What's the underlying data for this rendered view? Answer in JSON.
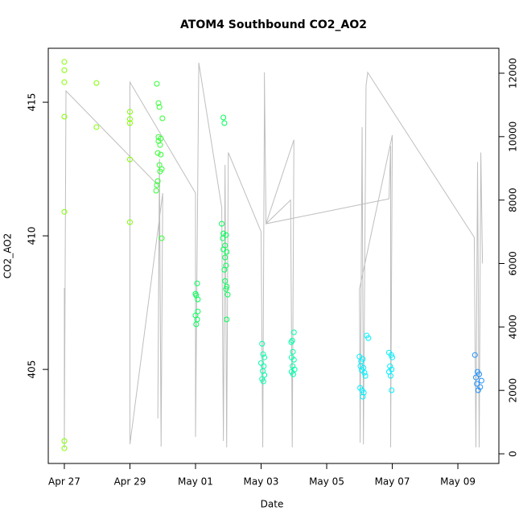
{
  "chart_data": {
    "type": "scatter",
    "title": "ATOM4 Southbound CO2_AO2",
    "x_label": "Date",
    "y_label": "CO2_AO2",
    "xlim": [
      26.51,
      40.25
    ],
    "xticks": [
      {
        "value": 27,
        "label": "Apr 27"
      },
      {
        "value": 29,
        "label": "Apr 29"
      },
      {
        "value": 31,
        "label": "May 01"
      },
      {
        "value": 33,
        "label": "May 03"
      },
      {
        "value": 35,
        "label": "May 05"
      },
      {
        "value": 37,
        "label": "May 07"
      },
      {
        "value": 39,
        "label": "May 09"
      }
    ],
    "ylim": [
      401.48,
      417.02
    ],
    "yticks": [
      405,
      410,
      415
    ],
    "y2lim": [
      -304,
      12786
    ],
    "y2ticks": [
      0,
      2000,
      4000,
      6000,
      8000,
      10000,
      12000
    ],
    "series": [
      {
        "type": "line",
        "axis": "y2",
        "color": "#bebebe",
        "x": [
          27.0,
          27.0,
          27.05,
          29.9,
          29.85,
          29.9,
          29.95,
          30.0,
          29.0,
          29.0,
          31.0,
          31.0,
          31.1,
          31.8,
          31.85,
          31.9,
          31.95,
          32.0,
          33.0,
          33.05,
          33.1,
          33.1,
          33.15,
          33.9,
          33.95,
          34.0,
          33.15,
          36.9,
          36.95,
          36.95,
          37.0,
          36.0,
          36.02,
          36.08,
          36.12,
          36.2,
          36.25,
          39.5,
          39.55,
          39.6,
          39.65,
          39.7,
          39.75
        ],
        "values": [
          5226,
          178,
          11441,
          8422,
          1116,
          9300,
          228,
          8219,
          304,
          11720,
          8219,
          533,
          12329,
          7763,
          406,
          9107,
          203,
          9500,
          7000,
          203,
          11000,
          12024,
          7255,
          8000,
          203,
          9900,
          7255,
          8040,
          9700,
          203,
          10046,
          5200,
          350,
          10300,
          300,
          11600,
          12024,
          6824,
          203,
          9200,
          203,
          9500,
          6000
        ]
      },
      {
        "type": "points",
        "color": "#80ff00",
        "x": [
          27,
          27,
          27,
          27,
          27,
          27,
          27,
          27.98,
          27.98,
          29,
          29,
          29,
          29,
          29
        ],
        "values": [
          416.51,
          416.2,
          415.75,
          414.46,
          410.9,
          402.32,
          402.05,
          415.72,
          414.07,
          414.64,
          414.37,
          414.22,
          412.86,
          410.51
        ]
      },
      {
        "type": "points",
        "color": "#33ff33",
        "x": [
          29.82,
          29.9,
          29.87,
          29.99,
          29.87,
          29.94,
          29.87,
          29.92,
          29.85,
          29.94,
          29.9,
          29.97,
          29.92,
          29.85,
          29.82,
          29.8,
          29.97
        ],
        "values": [
          415.69,
          414.82,
          414.97,
          414.4,
          413.7,
          413.64,
          413.55,
          413.4,
          413.1,
          413.04,
          412.65,
          412.5,
          412.41,
          412.05,
          411.9,
          411.69,
          409.91
        ]
      },
      {
        "type": "points",
        "color": "#00ff55",
        "x": [
          31.05,
          31.0,
          31.02,
          31.07,
          31.07,
          31.0,
          31.05,
          31.02,
          31.85,
          31.88,
          31.8,
          31.85,
          31.93,
          31.83,
          31.9,
          31.85,
          31.95,
          31.9,
          31.93,
          31.88,
          31.9,
          31.95,
          31.93,
          31.98,
          31.95
        ],
        "values": [
          408.22,
          407.83,
          407.77,
          407.62,
          407.17,
          407.02,
          406.87,
          406.69,
          414.43,
          414.22,
          410.45,
          410.09,
          410.03,
          409.91,
          409.64,
          409.49,
          409.4,
          409.19,
          408.89,
          408.73,
          408.31,
          408.1,
          408.01,
          407.8,
          406.87
        ]
      },
      {
        "type": "points",
        "color": "#00ffaa",
        "x": [
          33.03,
          33.06,
          33.1,
          33.0,
          33.08,
          33.05,
          33.1,
          33.03,
          33.07,
          34.0,
          33.95,
          33.92,
          33.97,
          33.93,
          34.0,
          33.96,
          34.02,
          33.93,
          33.98
        ],
        "values": [
          405.96,
          405.57,
          405.45,
          405.24,
          405.12,
          404.94,
          404.79,
          404.64,
          404.55,
          406.39,
          406.08,
          406.02,
          405.66,
          405.45,
          405.36,
          405.12,
          405.0,
          404.91,
          404.82
        ]
      },
      {
        "type": "points",
        "color": "#00f0ff",
        "x": [
          36.22,
          36.27,
          36.0,
          36.1,
          36.05,
          36.03,
          36.12,
          36.07,
          36.15,
          36.18,
          36.02,
          36.08,
          36.13,
          36.1,
          36.9,
          36.97,
          37.0,
          36.93,
          36.98,
          36.9,
          36.95,
          36.98
        ],
        "values": [
          406.27,
          406.17,
          405.48,
          405.39,
          405.3,
          405.12,
          405.06,
          404.97,
          404.88,
          404.76,
          404.31,
          404.22,
          404.13,
          403.98,
          405.63,
          405.54,
          405.45,
          405.12,
          405.0,
          404.91,
          404.76,
          404.22
        ]
      },
      {
        "type": "points",
        "color": "#1e90ff",
        "x": [
          39.52,
          39.6,
          39.65,
          39.55,
          39.72,
          39.58,
          39.68,
          39.62
        ],
        "values": [
          405.54,
          404.91,
          404.82,
          404.7,
          404.58,
          404.46,
          404.34,
          404.22
        ]
      }
    ]
  }
}
